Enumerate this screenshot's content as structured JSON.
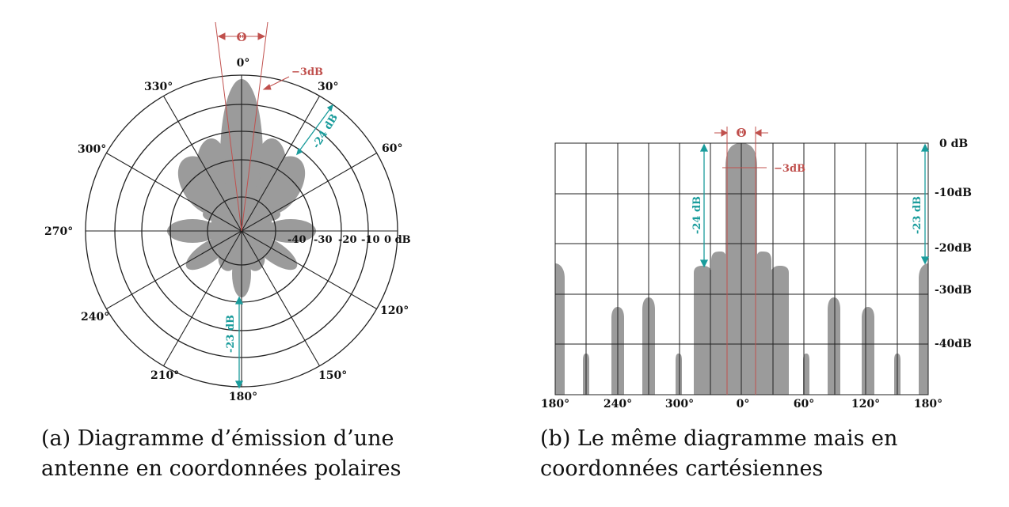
{
  "colors": {
    "lobe": "#9b9b9b",
    "grid": "#222222",
    "beam": "#c0504d",
    "dim": "#1a9c9c"
  },
  "polar": {
    "theta": "Θ",
    "minus3": "−3dB",
    "angles": [
      "0°",
      "30°",
      "60°",
      "120°",
      "150°",
      "180°",
      "210°",
      "240°",
      "270°",
      "300°",
      "330°"
    ],
    "ring_labels": [
      "-40",
      "-30",
      "-20",
      "-10",
      "0 dB"
    ],
    "dim_top": "-24 dB",
    "dim_bottom": "-23 dB"
  },
  "cart": {
    "theta": "Θ",
    "minus3": "−3dB",
    "db_labels": [
      "0 dB",
      "-10dB",
      "-20dB",
      "-30dB",
      "-40dB"
    ],
    "x_labels": [
      "180°",
      "240°",
      "300°",
      "0°",
      "60°",
      "120°",
      "180°"
    ],
    "dim_left": "-24 dB",
    "dim_right": "-23 dB"
  },
  "captions": {
    "a": "(a) Diagramme d’émission d’une antenne en coordonnées polaires",
    "b": "(b) Le même diagramme mais en coordonnées cartésiennes"
  }
}
